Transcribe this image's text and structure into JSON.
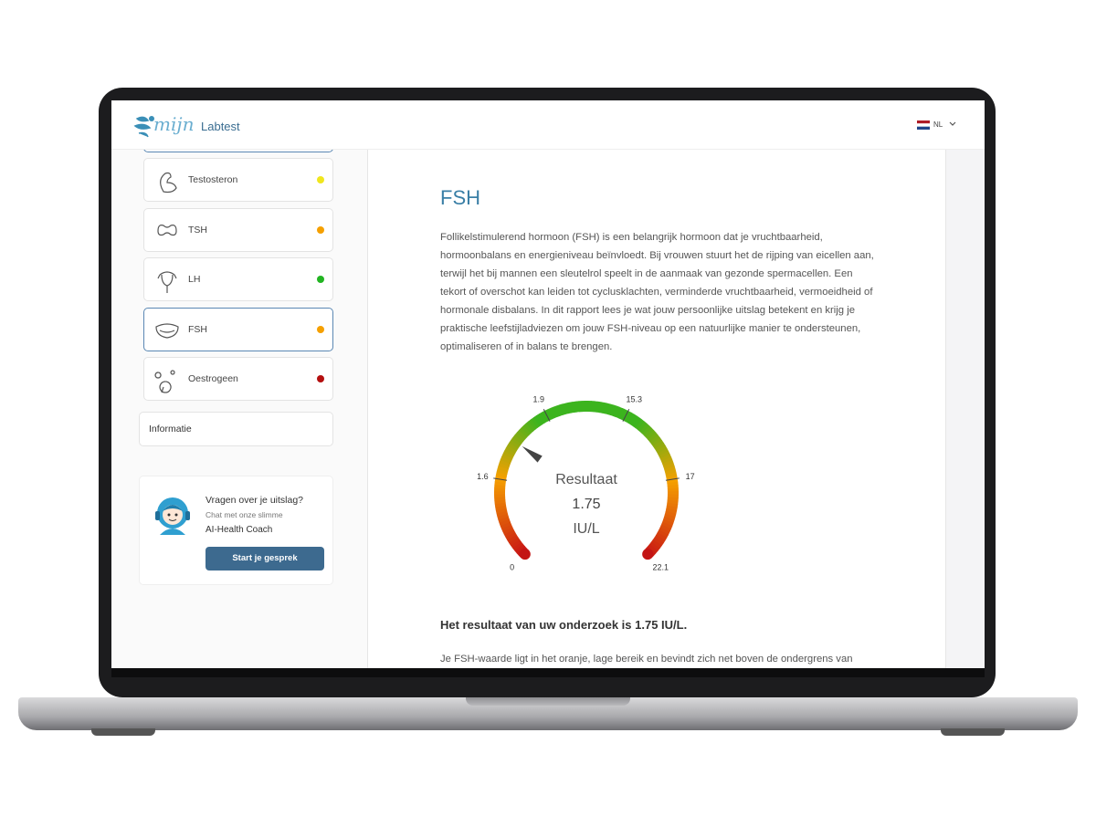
{
  "header": {
    "logo_script": "mijn",
    "logo_text": "Labtest",
    "language": "NL"
  },
  "sidebar": {
    "tests": [
      {
        "name": "Testosteron",
        "color": "#f0e61e"
      },
      {
        "name": "TSH",
        "color": "#f5a000"
      },
      {
        "name": "LH",
        "color": "#22b422"
      },
      {
        "name": "FSH",
        "color": "#f5a000",
        "active": true
      },
      {
        "name": "Oestrogeen",
        "color": "#b40f0f"
      }
    ],
    "info": "Informatie",
    "chat": {
      "title": "Vragen over je uitslag?",
      "subtitle": "Chat met onze slimme",
      "coach": "AI-Health Coach",
      "button": "Start je gesprek"
    }
  },
  "content": {
    "title": "FSH",
    "intro": "Follikelstimulerend hormoon (FSH) is een belangrijk hormoon dat je vruchtbaarheid, hormoonbalans en energieniveau beïnvloedt. Bij vrouwen stuurt het de rijping van eicellen aan, terwijl het bij mannen een sleutelrol speelt in de aanmaak van gezonde spermacellen. Een tekort of overschot kan leiden tot cyclusklachten, verminderde vruchtbaarheid, vermoeidheid of hormonale disbalans. In dit rapport lees je wat jouw persoonlijke uitslag betekent en krijg je praktische leefstijladviezen om jouw FSH-niveau op een natuurlijke manier te ondersteunen, optimaliseren of in balans te brengen.",
    "gauge": {
      "label": "Resultaat",
      "value": 1.75,
      "unit": "IU/L",
      "ticks": [
        0,
        1.6,
        1.9,
        15.3,
        17,
        22.1
      ]
    },
    "result_sentence": "Het resultaat van uw onderzoek is 1.75 IU/L.",
    "explanation": "Je FSH-waarde ligt in het oranje, lage bereik en bevindt zich net boven de ondergrens van"
  }
}
